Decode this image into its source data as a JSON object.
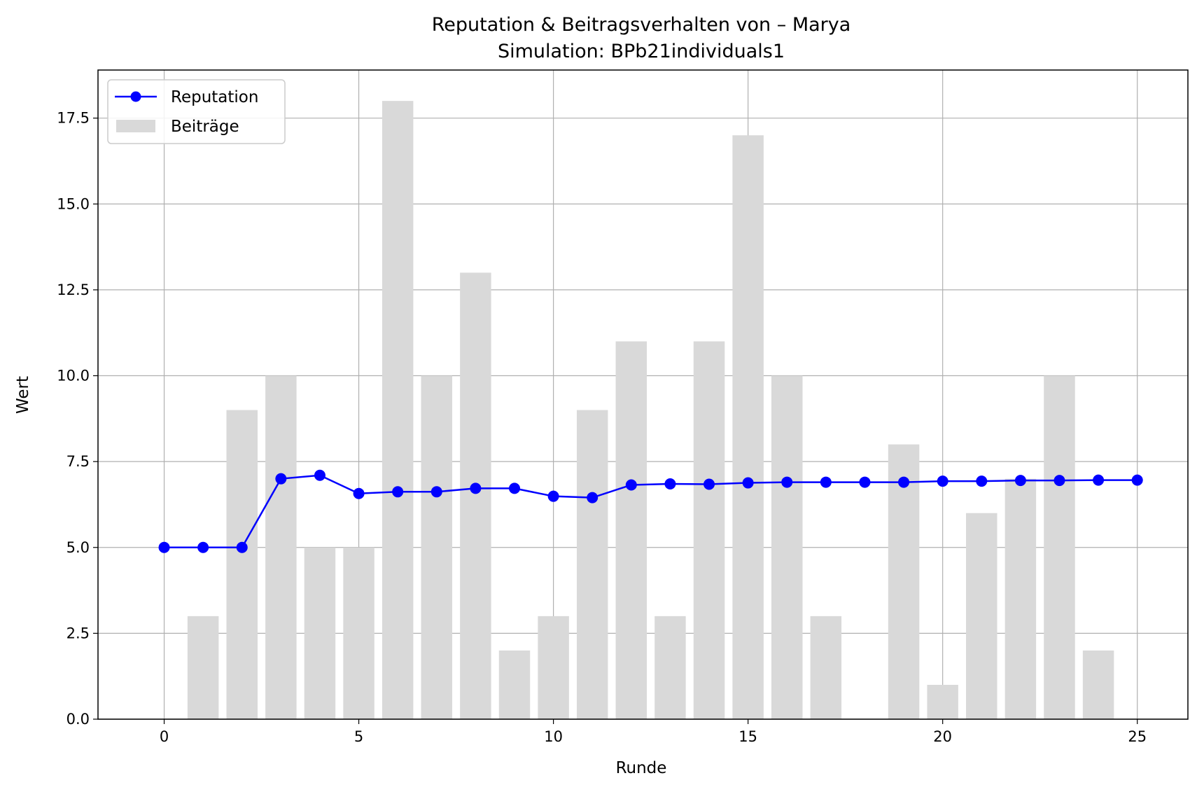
{
  "chart_data": {
    "type": "bar+line",
    "title": "Reputation & Beitragsverhalten von – Marya",
    "subtitle": "Simulation: BPb21individuals1",
    "xlabel": "Runde",
    "ylabel": "Wert",
    "xlim": [
      -1.7,
      26.3
    ],
    "ylim": [
      0,
      18.9
    ],
    "x_ticks": [
      0,
      5,
      10,
      15,
      20,
      25
    ],
    "y_ticks": [
      0.0,
      2.5,
      5.0,
      7.5,
      10.0,
      12.5,
      15.0,
      17.5
    ],
    "y_tick_labels": [
      "0.0",
      "2.5",
      "5.0",
      "7.5",
      "10.0",
      "12.5",
      "15.0",
      "17.5"
    ],
    "grid": true,
    "legend_position": "top-left",
    "x": [
      0,
      1,
      2,
      3,
      4,
      5,
      6,
      7,
      8,
      9,
      10,
      11,
      12,
      13,
      14,
      15,
      16,
      17,
      18,
      19,
      20,
      21,
      22,
      23,
      24,
      25
    ],
    "series": [
      {
        "name": "Reputation",
        "kind": "line",
        "color": "#0000ff",
        "values": [
          5.0,
          5.0,
          5.0,
          7.0,
          7.1,
          6.57,
          6.62,
          6.62,
          6.72,
          6.72,
          6.49,
          6.45,
          6.82,
          6.85,
          6.84,
          6.88,
          6.9,
          6.9,
          6.9,
          6.9,
          6.93,
          6.93,
          6.95,
          6.95,
          6.96,
          6.96
        ]
      },
      {
        "name": "Beiträge",
        "kind": "bar",
        "color": "#d9d9d9",
        "values": [
          0,
          3,
          9,
          10,
          5,
          5,
          18,
          10,
          13,
          2,
          3,
          9,
          11,
          3,
          11,
          17,
          10,
          3,
          0,
          8,
          1,
          6,
          7,
          10,
          2,
          0
        ]
      }
    ]
  }
}
